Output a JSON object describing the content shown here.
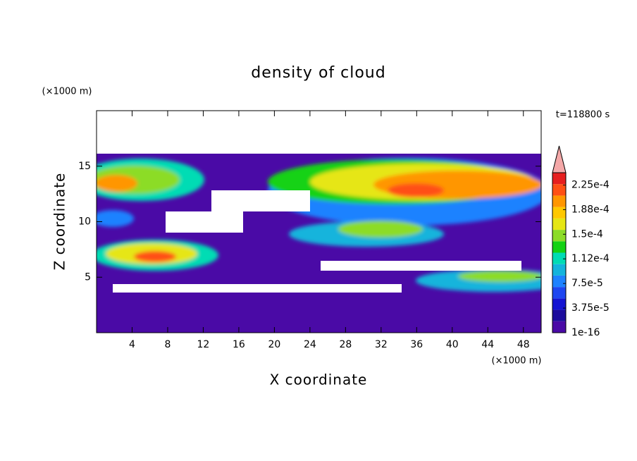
{
  "chart_data": {
    "type": "contour",
    "title": "density of cloud",
    "x_label": "X coordinate",
    "y_label": "Z coordinate",
    "x_unit": "(×1000 m)",
    "y_unit": "(×1000 m)",
    "time_label": "t=118800 s",
    "xlim": [
      0,
      50
    ],
    "ylim": [
      0,
      20
    ],
    "xticks": [
      4,
      8,
      12,
      16,
      20,
      24,
      28,
      32,
      36,
      40,
      44,
      48
    ],
    "yticks": [
      5,
      10,
      15
    ],
    "colorbar": {
      "clim": [
        1e-16,
        0.00024375
      ],
      "colors": [
        "#4a0aa6",
        "#1c0c9c",
        "#1414d2",
        "#1e46f0",
        "#1e82ff",
        "#14b4dc",
        "#00dcb4",
        "#14d214",
        "#8cdc28",
        "#e6e614",
        "#ffc800",
        "#ff9600",
        "#ff5014",
        "#e61e1e"
      ],
      "extend_color": "#f4a8a8",
      "ticks": [
        {
          "value": 1e-16,
          "label": "1e-16"
        },
        {
          "value": 3.75e-05,
          "label": "3.75e-5"
        },
        {
          "value": 7.5e-05,
          "label": "7.5e-5"
        },
        {
          "value": 0.0001125,
          "label": "1.12e-4"
        },
        {
          "value": 0.00015,
          "label": "1.5e-4"
        },
        {
          "value": 0.0001875,
          "label": "1.88e-4"
        },
        {
          "value": 0.000225,
          "label": "2.25e-4"
        }
      ]
    }
  }
}
